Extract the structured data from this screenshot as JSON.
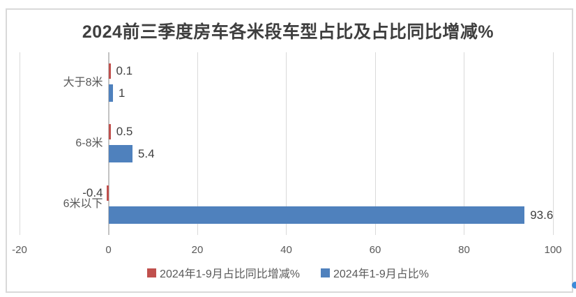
{
  "chart_data": {
    "type": "bar",
    "orientation": "horizontal",
    "title": "2024前三季度房车各米段车型占比及占比同比增减%",
    "categories": [
      "大于8米",
      "6-8米",
      "6米以下"
    ],
    "series": [
      {
        "name": "2024年1-9月占比同比增减%",
        "color": "#c0504d",
        "values": [
          0.1,
          0.5,
          -0.4
        ],
        "labels": [
          "0.1",
          "0.5",
          "-0.4"
        ]
      },
      {
        "name": "2024年1-9月占比%",
        "color": "#4f81bd",
        "values": [
          1,
          5.4,
          93.6
        ],
        "labels": [
          "1",
          "5.4",
          "93.6"
        ]
      }
    ],
    "x_axis": {
      "min": -20,
      "max": 100,
      "ticks": [
        -20,
        0,
        20,
        40,
        60,
        80,
        100
      ],
      "tick_labels": [
        "-20",
        "0",
        "20",
        "40",
        "60",
        "80",
        "100"
      ]
    },
    "grid": true,
    "legend_position": "bottom",
    "data_labels": true
  },
  "colors": {
    "title_text": "#3f3f3f",
    "axis_text": "#595959",
    "label_text": "#404040",
    "gridline": "#d9d9d9",
    "zero_line": "#c3c3c3",
    "frame_border": "#d9d9d9",
    "background": "#ffffff",
    "resize_handle": "#3c8bd9"
  }
}
